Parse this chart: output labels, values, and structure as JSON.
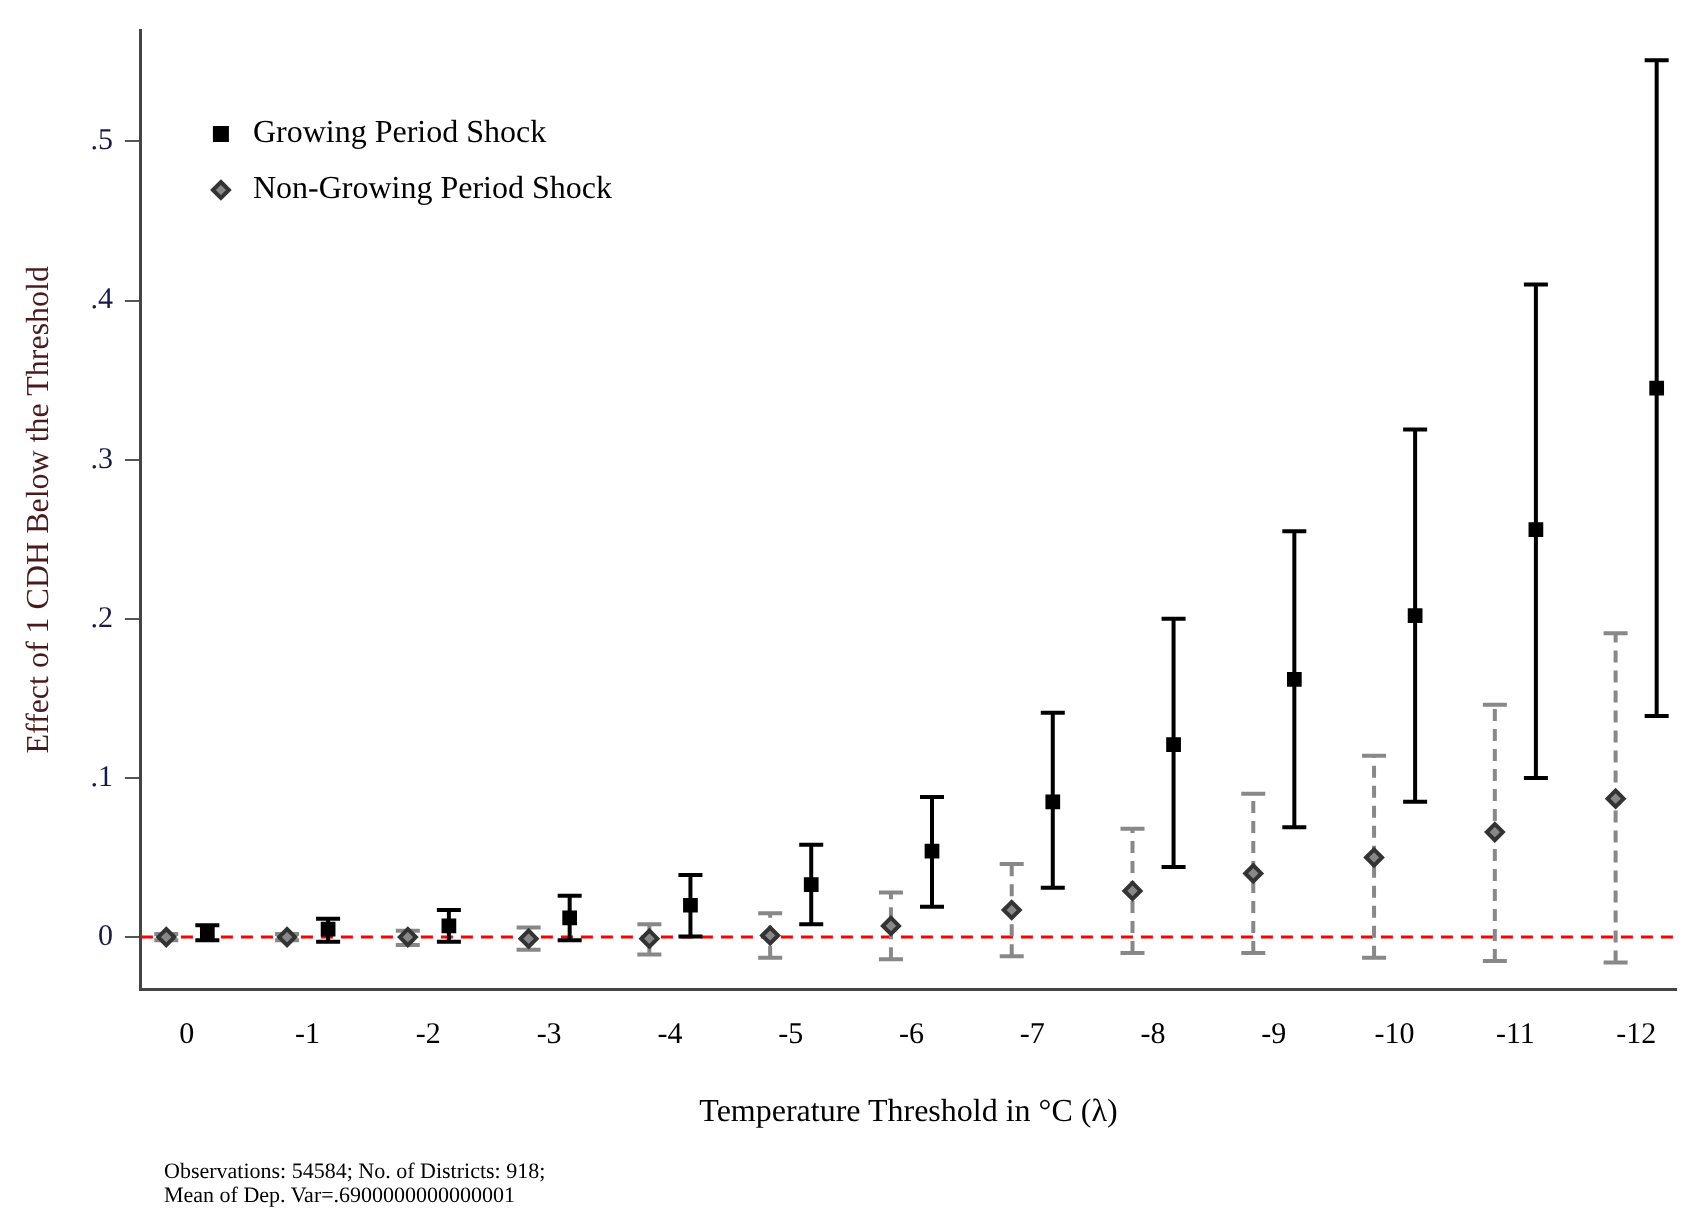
{
  "chart_data": {
    "type": "scatter",
    "xlabel": "Temperature Threshold in °C (λ)",
    "ylabel": "Effect of 1 CDH Below the Threshold",
    "categories": [
      "0",
      "-1",
      "-2",
      "-3",
      "-4",
      "-5",
      "-6",
      "-7",
      "-8",
      "-9",
      "-10",
      "-11",
      "-12"
    ],
    "series": [
      {
        "name": "Growing Period Shock",
        "color": "#000000",
        "marker": "square",
        "line_style": "solid",
        "values": [
          0.003,
          0.005,
          0.007,
          0.012,
          0.02,
          0.033,
          0.054,
          0.085,
          0.121,
          0.162,
          0.202,
          0.256,
          0.345
        ],
        "errors": [
          [
            -0.002,
            0.0074
          ],
          [
            -0.003,
            0.0115
          ],
          [
            -0.003,
            0.017
          ],
          [
            -0.002,
            0.026
          ],
          [
            0.0004,
            0.039
          ],
          [
            0.008,
            0.058
          ],
          [
            0.019,
            0.088
          ],
          [
            0.031,
            0.141
          ],
          [
            0.044,
            0.2
          ],
          [
            0.069,
            0.255
          ],
          [
            0.085,
            0.319
          ],
          [
            0.1,
            0.41
          ],
          [
            0.139,
            0.551
          ]
        ]
      },
      {
        "name": "Non-Growing Period Shock",
        "color": "#888888",
        "marker": "diamond",
        "line_style": "dashed",
        "values": [
          0,
          0,
          0,
          -0.001,
          -0.001,
          0.001,
          0.007,
          0.017,
          0.029,
          0.04,
          0.05,
          0.066,
          0.087
        ],
        "errors": [
          [
            -0.002,
            0.002
          ],
          [
            -0.002,
            0.002
          ],
          [
            -0.005,
            0.004
          ],
          [
            -0.008,
            0.006
          ],
          [
            -0.011,
            0.008
          ],
          [
            -0.013,
            0.015
          ],
          [
            -0.014,
            0.028
          ],
          [
            -0.012,
            0.046
          ],
          [
            -0.01,
            0.068
          ],
          [
            -0.01,
            0.09
          ],
          [
            -0.013,
            0.114
          ],
          [
            -0.015,
            0.146
          ],
          [
            -0.016,
            0.191
          ]
        ]
      }
    ],
    "ylim": [
      -0.033,
      0.57
    ],
    "yticks": [
      0,
      {
        "value": 0.1,
        "label": ".1"
      },
      {
        "value": 0.2,
        "label": ".2"
      },
      {
        "value": 0.3,
        "label": ".3"
      },
      {
        "value": 0.4,
        "label": ".4"
      },
      {
        "value": 0.5,
        "label": ".5"
      }
    ],
    "ref_lines": [
      {
        "axis": "y",
        "value": 0,
        "color": "#ff0000",
        "line_style": "dashed"
      }
    ],
    "grid": false,
    "legend": "top left",
    "annotations": [
      "Observations: 54584; No. of Districts: 918;",
      "Mean of Dep. Var=.6900000000000001"
    ]
  }
}
